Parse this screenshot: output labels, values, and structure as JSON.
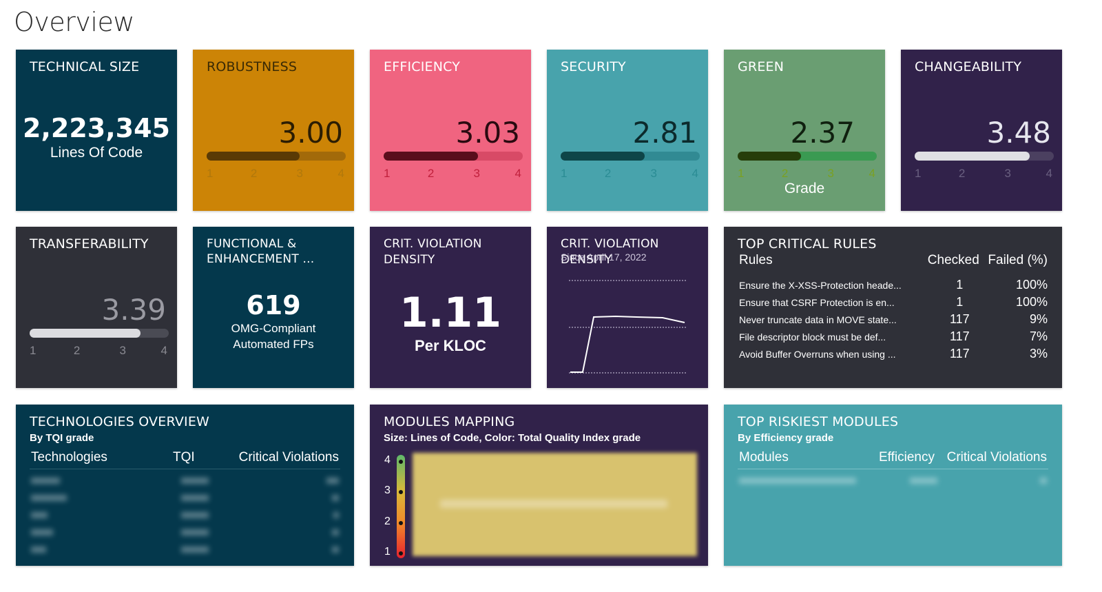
{
  "page": {
    "title": "Overview"
  },
  "technical_size": {
    "title": "TECHNICAL SIZE",
    "value": "2,223,345",
    "unit": "Lines Of Code"
  },
  "robustness": {
    "title": "ROBUSTNESS",
    "value": "3.00",
    "grade": 3.0,
    "scale": [
      "1",
      "2",
      "3",
      "4"
    ],
    "color": "#cc8406"
  },
  "efficiency": {
    "title": "EFFICIENCY",
    "value": "3.03",
    "grade": 3.03,
    "scale": [
      "1",
      "2",
      "3",
      "4"
    ],
    "color": "#f06480"
  },
  "security": {
    "title": "SECURITY",
    "value": "2.81",
    "grade": 2.81,
    "scale": [
      "1",
      "2",
      "3",
      "4"
    ],
    "color": "#48a3ac"
  },
  "green": {
    "title": "GREEN",
    "value": "2.37",
    "grade": 2.37,
    "scale": [
      "1",
      "2",
      "3",
      "4"
    ],
    "footer": "Grade",
    "color": "#6a9e72"
  },
  "changeability": {
    "title": "CHANGEABILITY",
    "value": "3.48",
    "grade": 3.48,
    "scale": [
      "1",
      "2",
      "3",
      "4"
    ],
    "color": "#31224a"
  },
  "transferability": {
    "title": "TRANSFERABILITY",
    "value": "3.39",
    "grade": 3.39,
    "scale": [
      "1",
      "2",
      "3",
      "4"
    ],
    "color": "#2f3038"
  },
  "functional": {
    "title_line1": "FUNCTIONAL &",
    "title_line2": "ENHANCEMENT ...",
    "value": "619",
    "desc_line1": "OMG-Compliant",
    "desc_line2": "Automated FPs"
  },
  "crit_density": {
    "title": "CRIT. VIOLATION DENSITY",
    "value": "1.11",
    "unit": "Per KLOC"
  },
  "crit_trend": {
    "title": "CRIT. VIOLATION DENSITY",
    "subtitle": "Since April 17, 2022"
  },
  "top_rules": {
    "title": "TOP CRITICAL RULES",
    "headers": {
      "rules": "Rules",
      "checked": "Checked",
      "failed": "Failed (%)"
    },
    "rows": [
      {
        "rule": "Ensure the X-XSS-Protection heade...",
        "checked": "1",
        "failed": "100%"
      },
      {
        "rule": "Ensure that CSRF Protection is en...",
        "checked": "1",
        "failed": "100%"
      },
      {
        "rule": "Never truncate data in MOVE state...",
        "checked": "117",
        "failed": "9%"
      },
      {
        "rule": "File descriptor block must be def...",
        "checked": "117",
        "failed": "7%"
      },
      {
        "rule": "Avoid Buffer Overruns when using ...",
        "checked": "117",
        "failed": "3%"
      }
    ]
  },
  "technologies": {
    "title": "TECHNOLOGIES OVERVIEW",
    "subtitle": "By TQI grade",
    "headers": {
      "tech": "Technologies",
      "tqi": "TQI",
      "violations": "Critical Violations"
    }
  },
  "modules_mapping": {
    "title": "MODULES MAPPING",
    "subtitle": "Size: Lines of Code, Color: Total Quality Index grade",
    "legend": [
      "4",
      "3",
      "2",
      "1"
    ]
  },
  "riskiest": {
    "title": "TOP RISKIEST MODULES",
    "subtitle": "By Efficiency grade",
    "headers": {
      "modules": "Modules",
      "efficiency": "Efficiency",
      "violations": "Critical Violations"
    }
  }
}
